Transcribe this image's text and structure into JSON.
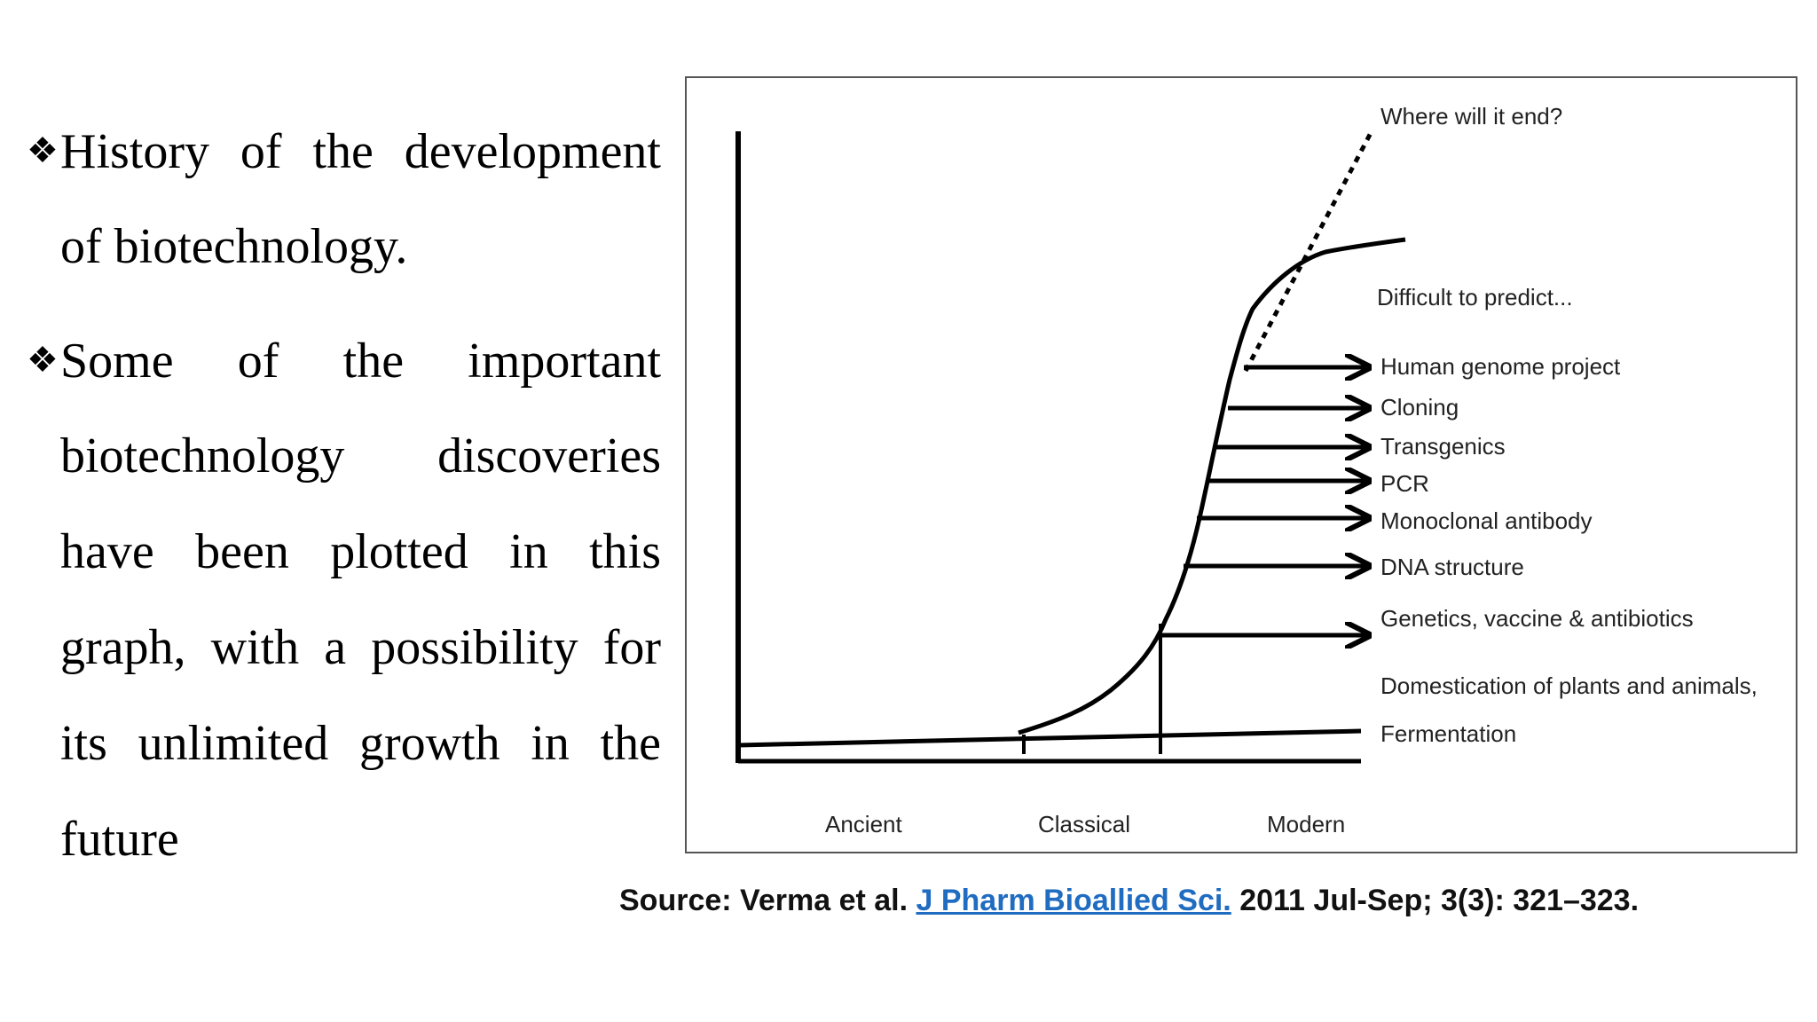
{
  "bullets": [
    {
      "symbol": "❖",
      "lines": [
        "History of the development",
        "of biotechnology."
      ]
    },
    {
      "symbol": "❖",
      "lines": [
        "Some of the important",
        "biotechnology discoveries",
        "have been plotted in this",
        "graph, with a possibility for",
        "its unlimited growth in the",
        "future"
      ]
    }
  ],
  "figure": {
    "x_labels": [
      "Ancient",
      "Classical",
      "Modern"
    ],
    "top_label": "Where will it end?",
    "predict_label": "Difficult to predict...",
    "events": [
      "Human genome project",
      "Cloning",
      "Transgenics",
      "PCR",
      "Monoclonal antibody",
      "DNA structure",
      "Genetics, vaccine & antibiotics",
      "Domestication of plants and animals,",
      "Fermentation"
    ]
  },
  "source": {
    "prefix": "Source: Verma et al.",
    "journal": "J Pharm Bioallied Sci.",
    "citation": "2011 Jul-Sep; 3(3): 321–323."
  }
}
